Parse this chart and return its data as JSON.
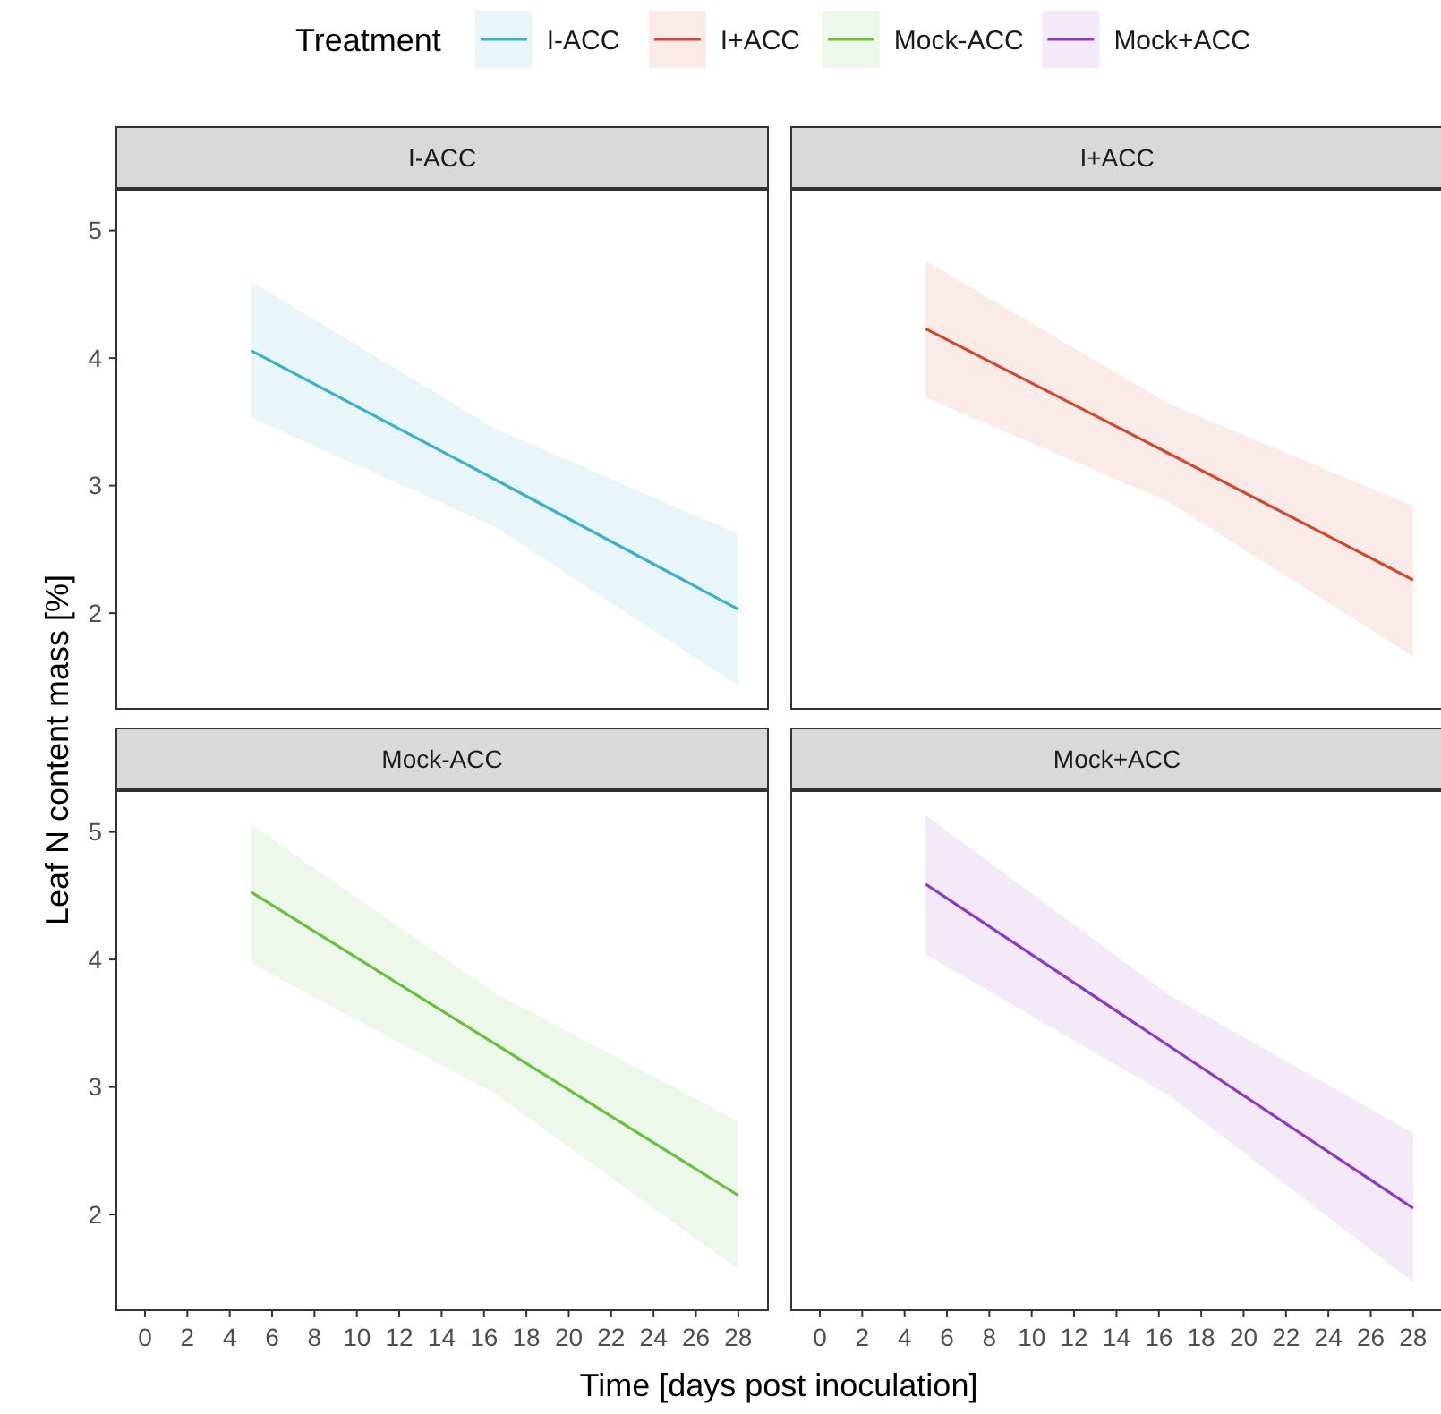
{
  "chart_data": [
    {
      "type": "line",
      "title": "I-ACC",
      "ylabel": "Leaf N content mass [%]",
      "legend_title": "Treatment",
      "legend": "top",
      "xlim": [
        -1.35,
        29.4
      ],
      "ylim": [
        1.25,
        5.32
      ],
      "yticks": [
        2,
        3,
        4,
        5
      ],
      "tick_labels": "y",
      "grid": false,
      "series": [
        {
          "name": "I-ACC",
          "color": "#3bb0cc",
          "x": [
            5,
            16.5,
            28
          ],
          "values": [
            4.06,
            3.05,
            2.03
          ],
          "lower": [
            3.53,
            2.68,
            1.43
          ],
          "upper": [
            4.6,
            3.45,
            2.62
          ]
        }
      ]
    },
    {
      "type": "line",
      "title": "I+ACC",
      "xlim": [
        -1.35,
        29.4
      ],
      "ylim": [
        1.25,
        5.32
      ],
      "tick_labels": false,
      "grid": false,
      "series": [
        {
          "name": "I+ACC",
          "color": "#d4472c",
          "x": [
            5,
            16.5,
            28
          ],
          "values": [
            4.23,
            3.25,
            2.26
          ],
          "lower": [
            3.69,
            2.87,
            1.66
          ],
          "upper": [
            4.76,
            3.64,
            2.84
          ]
        }
      ]
    },
    {
      "type": "line",
      "title": "Mock-ACC",
      "xlabel": "Time [days post inoculation]",
      "xlim": [
        -1.35,
        29.4
      ],
      "ylim": [
        1.25,
        5.32
      ],
      "xticks": [
        0,
        2,
        4,
        6,
        8,
        10,
        12,
        14,
        16,
        18,
        20,
        22,
        24,
        26,
        28
      ],
      "yticks": [
        2,
        3,
        4,
        5
      ],
      "grid": false,
      "series": [
        {
          "name": "Mock-ACC",
          "color": "#64c23c",
          "x": [
            5,
            16.5,
            28
          ],
          "values": [
            4.53,
            3.34,
            2.15
          ],
          "lower": [
            3.97,
            2.95,
            1.57
          ],
          "upper": [
            5.06,
            3.74,
            2.73
          ]
        }
      ]
    },
    {
      "type": "line",
      "title": "Mock+ACC",
      "xlim": [
        -1.35,
        29.4
      ],
      "ylim": [
        1.25,
        5.32
      ],
      "xticks": [
        0,
        2,
        4,
        6,
        8,
        10,
        12,
        14,
        16,
        18,
        20,
        22,
        24,
        26,
        28
      ],
      "tick_labels": "x",
      "grid": false,
      "series": [
        {
          "name": "Mock+ACC",
          "color": "#8e38c9",
          "x": [
            5,
            16.5,
            28
          ],
          "values": [
            4.59,
            3.32,
            2.05
          ],
          "lower": [
            4.04,
            2.93,
            1.47
          ],
          "upper": [
            5.13,
            3.72,
            2.64
          ]
        }
      ]
    }
  ]
}
